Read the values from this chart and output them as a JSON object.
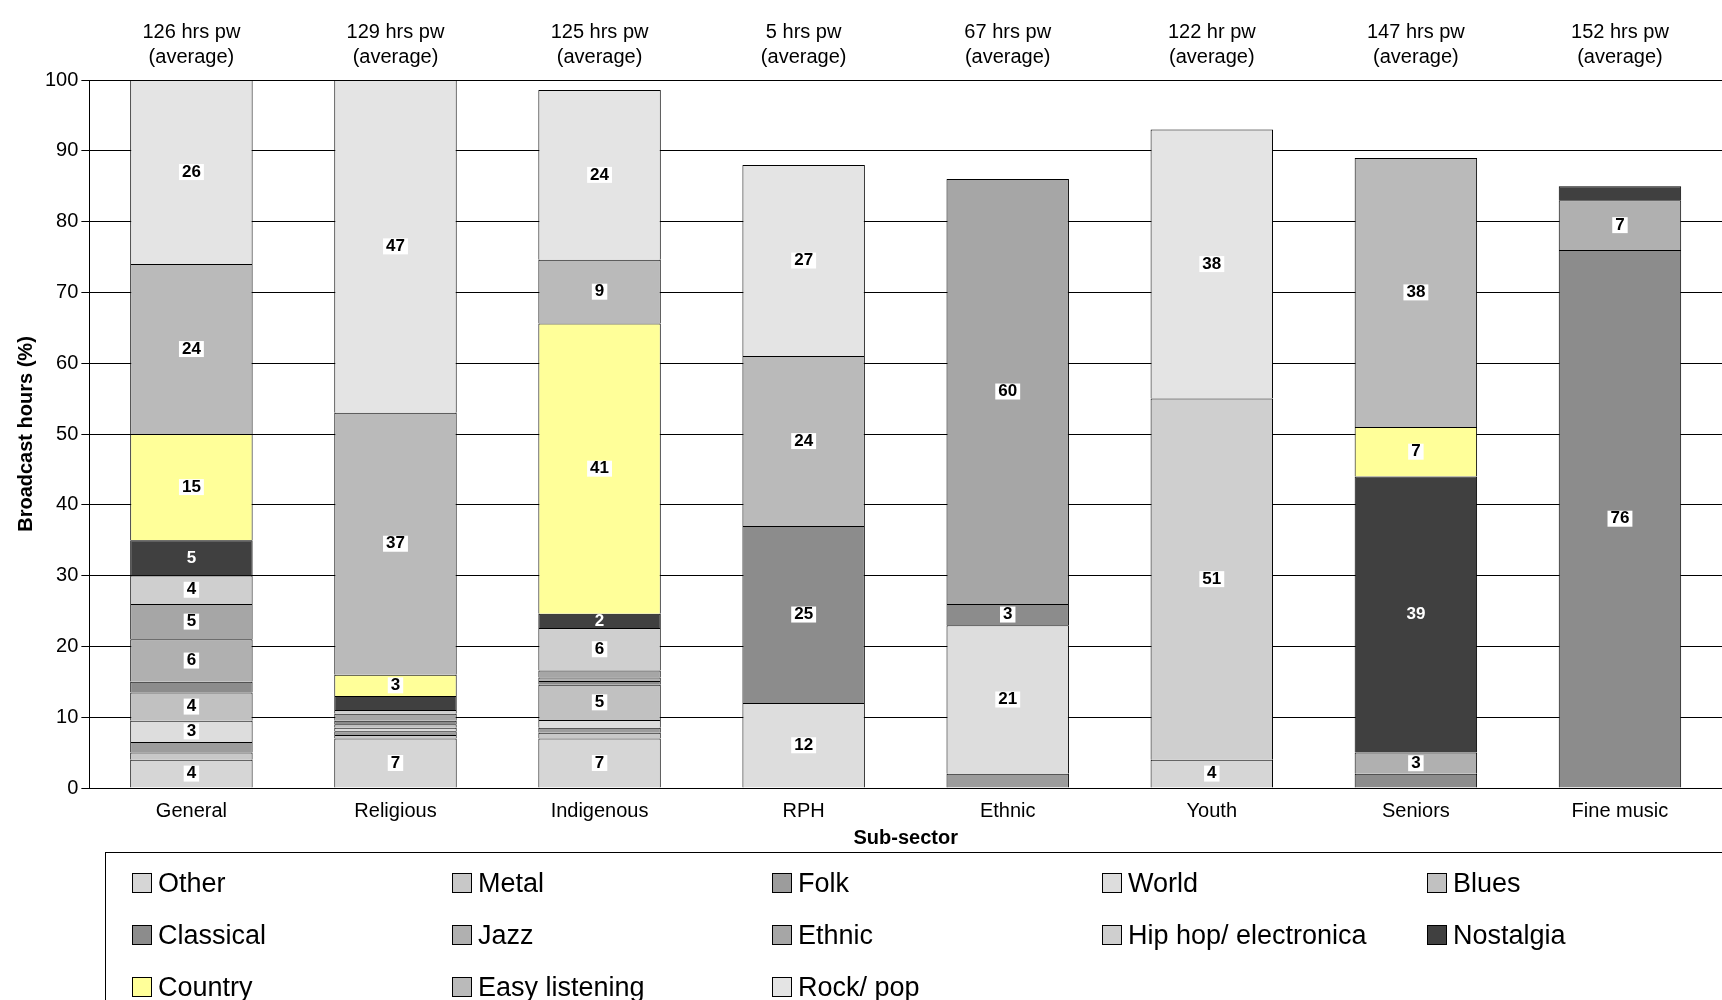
{
  "chart_data": {
    "type": "bar",
    "stacked": true,
    "xlabel": "Sub-sector",
    "ylabel": "Broadcast hours (%)",
    "categories": [
      "General",
      "Religious",
      "Indigenous",
      "RPH",
      "Ethnic",
      "Youth",
      "Seniors",
      "Fine music"
    ],
    "ylim": [
      0,
      100
    ],
    "yticks": [
      0,
      10,
      20,
      30,
      40,
      50,
      60,
      70,
      80,
      90,
      100
    ],
    "grid": "y",
    "legend": "bottom",
    "series": [
      {
        "name": "Other",
        "color": "#d6d6d6",
        "values": [
          4,
          7,
          7,
          0,
          0,
          4,
          0,
          0
        ],
        "value_labels": [
          "4",
          "7",
          "7",
          null,
          null,
          "4",
          null,
          null
        ]
      },
      {
        "name": "Metal",
        "color": "#c8c8c8",
        "values": [
          1,
          0.5,
          0.8,
          0,
          0,
          0,
          0,
          0
        ],
        "value_labels": [
          null,
          null,
          null,
          null,
          null,
          null,
          null,
          null
        ]
      },
      {
        "name": "Folk",
        "color": "#9c9c9c",
        "values": [
          1.5,
          0.5,
          0.7,
          0,
          2,
          0,
          0,
          0
        ],
        "value_labels": [
          null,
          null,
          null,
          null,
          null,
          null,
          null,
          null
        ]
      },
      {
        "name": "World",
        "color": "#dddddd",
        "values": [
          3,
          0.5,
          1.1,
          12,
          21,
          0,
          0,
          0
        ],
        "value_labels": [
          "3",
          null,
          null,
          "12",
          "21",
          null,
          null,
          null
        ]
      },
      {
        "name": "Blues",
        "color": "#c1c1c1",
        "values": [
          4,
          0.5,
          5,
          0,
          0,
          0,
          0,
          0
        ],
        "value_labels": [
          "4",
          null,
          "5",
          null,
          null,
          null,
          null,
          null
        ]
      },
      {
        "name": "Classical",
        "color": "#8c8c8c",
        "values": [
          1.5,
          0.5,
          0.5,
          25,
          3,
          0,
          2,
          76
        ],
        "value_labels": [
          null,
          null,
          null,
          "25",
          "3",
          null,
          null,
          "76"
        ]
      },
      {
        "name": "Jazz",
        "color": "#b0b0b0",
        "values": [
          6,
          0,
          0.5,
          0,
          0,
          0,
          3,
          7
        ],
        "value_labels": [
          "6",
          null,
          null,
          null,
          null,
          null,
          "3",
          "7"
        ]
      },
      {
        "name": "Ethnic",
        "color": "#a6a6a6",
        "values": [
          5,
          1,
          1,
          0,
          60,
          0,
          0,
          0
        ],
        "value_labels": [
          "5",
          null,
          null,
          null,
          "60",
          null,
          null,
          null
        ]
      },
      {
        "name": "Hip hop/ electronica",
        "color": "#cfcfcf",
        "values": [
          4,
          0.5,
          6,
          0,
          0,
          51,
          0,
          0
        ],
        "value_labels": [
          "4",
          null,
          "6",
          null,
          null,
          "51",
          null,
          null
        ]
      },
      {
        "name": "Nostalgia",
        "color": "#404040",
        "values": [
          5,
          2,
          2,
          0,
          0,
          0,
          39,
          2
        ],
        "value_labels": [
          "5",
          null,
          "2",
          null,
          null,
          null,
          "39",
          null
        ]
      },
      {
        "name": "Country",
        "color": "#ffff99",
        "values": [
          15,
          3,
          41,
          0,
          0,
          0,
          7,
          0
        ],
        "value_labels": [
          "15",
          "3",
          "41",
          null,
          null,
          null,
          "7",
          null
        ]
      },
      {
        "name": "Easy listening",
        "color": "#bababa",
        "values": [
          24,
          37,
          9,
          24,
          0,
          0,
          38,
          0
        ],
        "value_labels": [
          "24",
          "37",
          "9",
          "24",
          null,
          null,
          "38",
          null
        ]
      },
      {
        "name": "Rock/ pop",
        "color": "#e4e4e4",
        "values": [
          26,
          47,
          24,
          27,
          0,
          38,
          0,
          0
        ],
        "value_labels": [
          "26",
          "47",
          "24",
          "27",
          null,
          "38",
          null,
          null
        ]
      }
    ],
    "annotations": [
      "126 hrs pw (average)",
      "129 hrs pw (average)",
      "125 hrs pw (average)",
      "5 hrs pw (average)",
      "67 hrs pw (average)",
      "122 hr pw (average)",
      "147 hrs pw (average)",
      "152 hrs pw (average)"
    ]
  }
}
